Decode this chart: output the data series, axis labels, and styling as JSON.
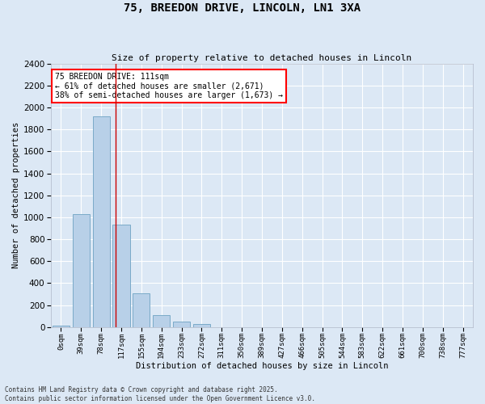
{
  "title_line1": "75, BREEDON DRIVE, LINCOLN, LN1 3XA",
  "title_line2": "Size of property relative to detached houses in Lincoln",
  "xlabel": "Distribution of detached houses by size in Lincoln",
  "ylabel": "Number of detached properties",
  "bar_color": "#b8d0e8",
  "bar_edge_color": "#7aaac8",
  "background_color": "#dce8f5",
  "fig_background_color": "#dce8f5",
  "categories": [
    "0sqm",
    "39sqm",
    "78sqm",
    "117sqm",
    "155sqm",
    "194sqm",
    "233sqm",
    "272sqm",
    "311sqm",
    "350sqm",
    "389sqm",
    "427sqm",
    "466sqm",
    "505sqm",
    "544sqm",
    "583sqm",
    "622sqm",
    "661sqm",
    "700sqm",
    "738sqm",
    "777sqm"
  ],
  "values": [
    15,
    1030,
    1920,
    930,
    310,
    110,
    50,
    25,
    0,
    0,
    0,
    0,
    0,
    0,
    0,
    0,
    0,
    0,
    0,
    0,
    0
  ],
  "ylim": [
    0,
    2400
  ],
  "yticks": [
    0,
    200,
    400,
    600,
    800,
    1000,
    1200,
    1400,
    1600,
    1800,
    2000,
    2200,
    2400
  ],
  "annotation_title": "75 BREEDON DRIVE: 111sqm",
  "annotation_line2": "← 61% of detached houses are smaller (2,671)",
  "annotation_line3": "38% of semi-detached houses are larger (1,673) →",
  "footer_line1": "Contains HM Land Registry data © Crown copyright and database right 2025.",
  "footer_line2": "Contains public sector information licensed under the Open Government Licence v3.0.",
  "grid_color": "#ffffff",
  "vline_color": "#cc0000",
  "vline_x": 2.72
}
